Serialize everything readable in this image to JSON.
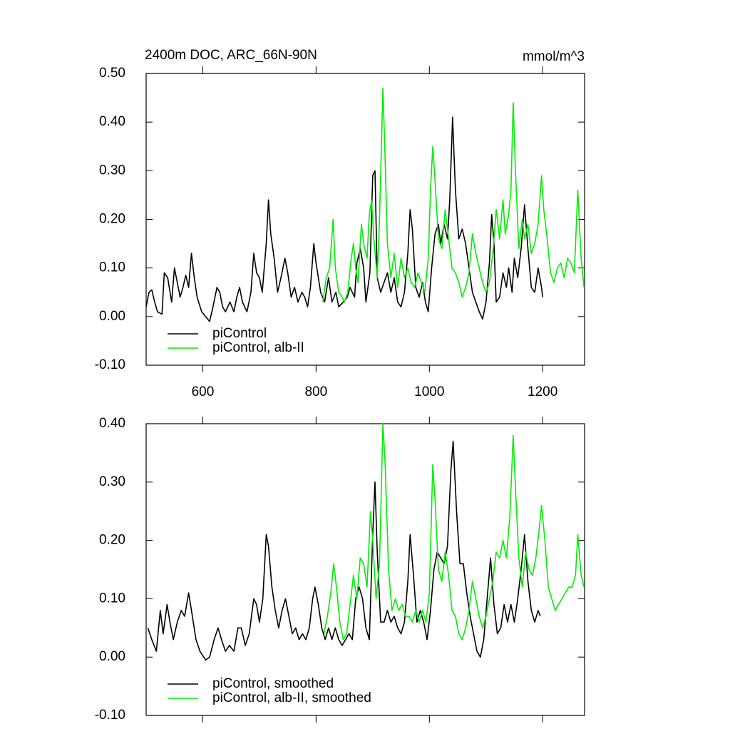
{
  "chart_data": [
    {
      "type": "line",
      "title": "2400m DOC, ARC_66N-90N",
      "units": "mmol/m^3",
      "xlim": [
        500,
        1274
      ],
      "xticks": [
        600,
        800,
        1000,
        1200
      ],
      "xtick_labels": true,
      "ylim": [
        -0.1,
        0.5
      ],
      "yticks": [
        {
          "value": -0.1,
          "label": "-0.10"
        },
        {
          "value": 0,
          "label": "0.00"
        },
        {
          "value": 0.1,
          "label": "0.10"
        },
        {
          "value": 0.2,
          "label": "0.20"
        },
        {
          "value": 0.3,
          "label": "0.30"
        },
        {
          "value": 0.4,
          "label": "0.40"
        },
        {
          "value": 0.5,
          "label": "0.50"
        }
      ],
      "series": [
        {
          "name": "piControl",
          "color": "#000000",
          "x": [
            500,
            505,
            510,
            515,
            520,
            528,
            532,
            538,
            545,
            550,
            555,
            560,
            565,
            570,
            575,
            580,
            585,
            590,
            598,
            605,
            612,
            618,
            625,
            630,
            635,
            640,
            648,
            655,
            660,
            665,
            670,
            678,
            685,
            690,
            695,
            700,
            705,
            712,
            716,
            720,
            726,
            732,
            738,
            745,
            750,
            756,
            762,
            768,
            775,
            780,
            785,
            790,
            796,
            800,
            808,
            815,
            822,
            828,
            835,
            840,
            848,
            855,
            860,
            868,
            872,
            878,
            884,
            888,
            895,
            900,
            904,
            908,
            914,
            920,
            926,
            932,
            938,
            944,
            950,
            956,
            962,
            966,
            970,
            976,
            982,
            988,
            993,
            998,
            1004,
            1010,
            1016,
            1020,
            1026,
            1032,
            1036,
            1041,
            1046,
            1052,
            1058,
            1064,
            1070,
            1076,
            1082,
            1088,
            1094,
            1100,
            1106,
            1110,
            1114,
            1118,
            1124,
            1130,
            1136,
            1140,
            1146,
            1150,
            1156,
            1162,
            1168,
            1174,
            1180,
            1186,
            1192,
            1198,
            1200
          ],
          "values": [
            0.02,
            0.05,
            0.055,
            0.03,
            0.01,
            0.005,
            0.09,
            0.08,
            0.03,
            0.1,
            0.07,
            0.04,
            0.06,
            0.085,
            0.06,
            0.13,
            0.08,
            0.04,
            0.01,
            0,
            -0.01,
            0.02,
            0.06,
            0.05,
            0.02,
            0.01,
            0.03,
            0.01,
            0.04,
            0.06,
            0.03,
            0.01,
            0.05,
            0.13,
            0.09,
            0.08,
            0.05,
            0.15,
            0.24,
            0.17,
            0.12,
            0.05,
            0.08,
            0.12,
            0.09,
            0.04,
            0.06,
            0.03,
            0.05,
            0.04,
            0.02,
            0.06,
            0.15,
            0.11,
            0.05,
            0.03,
            0.08,
            0.03,
            0.05,
            0.02,
            0.03,
            0.04,
            0.06,
            0.04,
            0.11,
            0.14,
            0.1,
            0.03,
            0.09,
            0.29,
            0.3,
            0.08,
            0.05,
            0.07,
            0.09,
            0.05,
            0.08,
            0.03,
            0.02,
            0.05,
            0.13,
            0.22,
            0.18,
            0.06,
            0.04,
            0.07,
            0.03,
            0.01,
            0.1,
            0.17,
            0.19,
            0.15,
            0.19,
            0.16,
            0.24,
            0.41,
            0.26,
            0.16,
            0.18,
            0.15,
            0.1,
            0.05,
            0.03,
            0.01,
            -0.005,
            0.03,
            0.11,
            0.21,
            0.15,
            0.03,
            0.04,
            0.09,
            0.06,
            0.1,
            0.05,
            0.12,
            0.08,
            0.14,
            0.23,
            0.14,
            0.06,
            0.05,
            0.1,
            0.06,
            0.04
          ]
        },
        {
          "name": "piControl, alb-II",
          "color": "#00ee00",
          "x": [
            812,
            818,
            824,
            830,
            834,
            840,
            846,
            850,
            856,
            862,
            866,
            870,
            874,
            880,
            884,
            890,
            894,
            898,
            902,
            908,
            912,
            918,
            922,
            926,
            932,
            938,
            944,
            950,
            956,
            962,
            968,
            974,
            980,
            986,
            992,
            998,
            1002,
            1006,
            1010,
            1016,
            1022,
            1028,
            1034,
            1040,
            1046,
            1052,
            1058,
            1064,
            1070,
            1076,
            1082,
            1088,
            1094,
            1100,
            1106,
            1112,
            1118,
            1124,
            1130,
            1134,
            1140,
            1144,
            1148,
            1152,
            1158,
            1164,
            1168,
            1174,
            1180,
            1186,
            1192,
            1198,
            1202,
            1208,
            1214,
            1220,
            1226,
            1232,
            1238,
            1244,
            1250,
            1256,
            1262,
            1268,
            1273
          ],
          "values": [
            0.03,
            0.08,
            0.1,
            0.2,
            0.1,
            0.05,
            0.04,
            0.03,
            0.05,
            0.12,
            0.15,
            0.1,
            0.07,
            0.19,
            0.15,
            0.12,
            0.21,
            0.24,
            0.16,
            0.08,
            0.2,
            0.47,
            0.32,
            0.15,
            0.08,
            0.13,
            0.06,
            0.12,
            0.08,
            0.1,
            0.07,
            0.06,
            0.09,
            0.07,
            0.05,
            0.12,
            0.26,
            0.35,
            0.28,
            0.16,
            0.14,
            0.22,
            0.16,
            0.1,
            0.09,
            0.07,
            0.04,
            0.06,
            0.09,
            0.17,
            0.13,
            0.1,
            0.07,
            0.05,
            0.07,
            0.13,
            0.22,
            0.16,
            0.24,
            0.17,
            0.21,
            0.26,
            0.44,
            0.3,
            0.14,
            0.2,
            0.16,
            0.19,
            0.13,
            0.15,
            0.19,
            0.29,
            0.22,
            0.16,
            0.09,
            0.07,
            0.1,
            0.11,
            0.08,
            0.12,
            0.11,
            0.09,
            0.26,
            0.12,
            0.06
          ]
        }
      ]
    },
    {
      "type": "line",
      "xlim": [
        500,
        1274
      ],
      "xticks": [
        600,
        800,
        1000,
        1200
      ],
      "xtick_labels": false,
      "ylim": [
        -0.1,
        0.4
      ],
      "yticks": [
        {
          "value": -0.1,
          "label": "-0.10"
        },
        {
          "value": 0,
          "label": "0.00"
        },
        {
          "value": 0.1,
          "label": "0.10"
        },
        {
          "value": 0.2,
          "label": "0.20"
        },
        {
          "value": 0.3,
          "label": "0.30"
        },
        {
          "value": 0.4,
          "label": "0.40"
        }
      ],
      "series": [
        {
          "name": "piControl, smoothed",
          "color": "#000000",
          "x": [
            503,
            510,
            518,
            525,
            530,
            537,
            542,
            548,
            555,
            562,
            568,
            575,
            580,
            588,
            595,
            605,
            612,
            620,
            627,
            633,
            640,
            647,
            655,
            662,
            668,
            675,
            682,
            690,
            695,
            700,
            706,
            712,
            716,
            722,
            728,
            734,
            740,
            746,
            752,
            758,
            764,
            770,
            776,
            782,
            788,
            794,
            798,
            804,
            810,
            816,
            822,
            828,
            834,
            840,
            846,
            852,
            858,
            864,
            870,
            876,
            882,
            888,
            894,
            900,
            904,
            908,
            914,
            920,
            926,
            932,
            938,
            944,
            950,
            956,
            962,
            966,
            972,
            978,
            984,
            990,
            996,
            1002,
            1008,
            1014,
            1020,
            1026,
            1032,
            1038,
            1042,
            1048,
            1054,
            1060,
            1066,
            1072,
            1078,
            1084,
            1090,
            1096,
            1102,
            1108,
            1114,
            1120,
            1126,
            1132,
            1138,
            1144,
            1150,
            1156,
            1162,
            1168,
            1174,
            1180,
            1186,
            1192,
            1196
          ],
          "values": [
            0.05,
            0.03,
            0.01,
            0.08,
            0.04,
            0.09,
            0.06,
            0.03,
            0.06,
            0.08,
            0.07,
            0.11,
            0.08,
            0.03,
            0.01,
            -0.005,
            0,
            0.03,
            0.05,
            0.03,
            0.01,
            0.02,
            0.01,
            0.05,
            0.05,
            0.02,
            0.04,
            0.1,
            0.09,
            0.06,
            0.1,
            0.21,
            0.19,
            0.12,
            0.08,
            0.05,
            0.08,
            0.1,
            0.07,
            0.04,
            0.05,
            0.03,
            0.04,
            0.03,
            0.05,
            0.1,
            0.12,
            0.09,
            0.05,
            0.03,
            0.05,
            0.03,
            0.05,
            0.03,
            0.02,
            0.03,
            0.04,
            0.03,
            0.1,
            0.12,
            0.1,
            0.05,
            0.03,
            0.21,
            0.3,
            0.18,
            0.06,
            0.06,
            0.08,
            0.06,
            0.07,
            0.05,
            0.04,
            0.06,
            0.13,
            0.21,
            0.14,
            0.06,
            0.08,
            0.06,
            0.03,
            0.08,
            0.15,
            0.18,
            0.17,
            0.16,
            0.19,
            0.32,
            0.37,
            0.25,
            0.16,
            0.16,
            0.11,
            0.07,
            0.04,
            0.01,
            0,
            0.03,
            0.1,
            0.17,
            0.09,
            0.04,
            0.05,
            0.09,
            0.06,
            0.09,
            0.06,
            0.1,
            0.15,
            0.21,
            0.13,
            0.08,
            0.06,
            0.08,
            0.07
          ]
        },
        {
          "name": "piControl, alb-II, smoothed",
          "color": "#00ee00",
          "x": [
            814,
            820,
            826,
            831,
            836,
            842,
            848,
            854,
            860,
            866,
            872,
            878,
            884,
            890,
            896,
            900,
            906,
            912,
            918,
            922,
            928,
            934,
            940,
            946,
            952,
            958,
            964,
            970,
            976,
            982,
            988,
            994,
            1000,
            1006,
            1010,
            1016,
            1022,
            1028,
            1034,
            1040,
            1046,
            1052,
            1058,
            1064,
            1070,
            1076,
            1082,
            1088,
            1094,
            1100,
            1106,
            1112,
            1118,
            1124,
            1130,
            1136,
            1142,
            1148,
            1152,
            1158,
            1164,
            1170,
            1176,
            1182,
            1188,
            1194,
            1198,
            1204,
            1210,
            1216,
            1222,
            1228,
            1234,
            1240,
            1246,
            1252,
            1258,
            1262,
            1268,
            1273
          ],
          "values": [
            0.04,
            0.07,
            0.11,
            0.16,
            0.12,
            0.06,
            0.03,
            0.04,
            0.09,
            0.14,
            0.1,
            0.17,
            0.16,
            0.12,
            0.25,
            0.2,
            0.1,
            0.16,
            0.4,
            0.33,
            0.15,
            0.08,
            0.1,
            0.08,
            0.09,
            0.07,
            0.07,
            0.06,
            0.08,
            0.06,
            0.08,
            0.06,
            0.11,
            0.33,
            0.27,
            0.15,
            0.13,
            0.18,
            0.14,
            0.08,
            0.07,
            0.04,
            0.03,
            0.05,
            0.08,
            0.13,
            0.1,
            0.07,
            0.05,
            0.07,
            0.1,
            0.13,
            0.18,
            0.17,
            0.2,
            0.17,
            0.24,
            0.38,
            0.29,
            0.17,
            0.12,
            0.18,
            0.15,
            0.14,
            0.17,
            0.22,
            0.26,
            0.2,
            0.12,
            0.1,
            0.08,
            0.09,
            0.1,
            0.11,
            0.12,
            0.12,
            0.14,
            0.21,
            0.14,
            0.12
          ]
        }
      ]
    }
  ]
}
